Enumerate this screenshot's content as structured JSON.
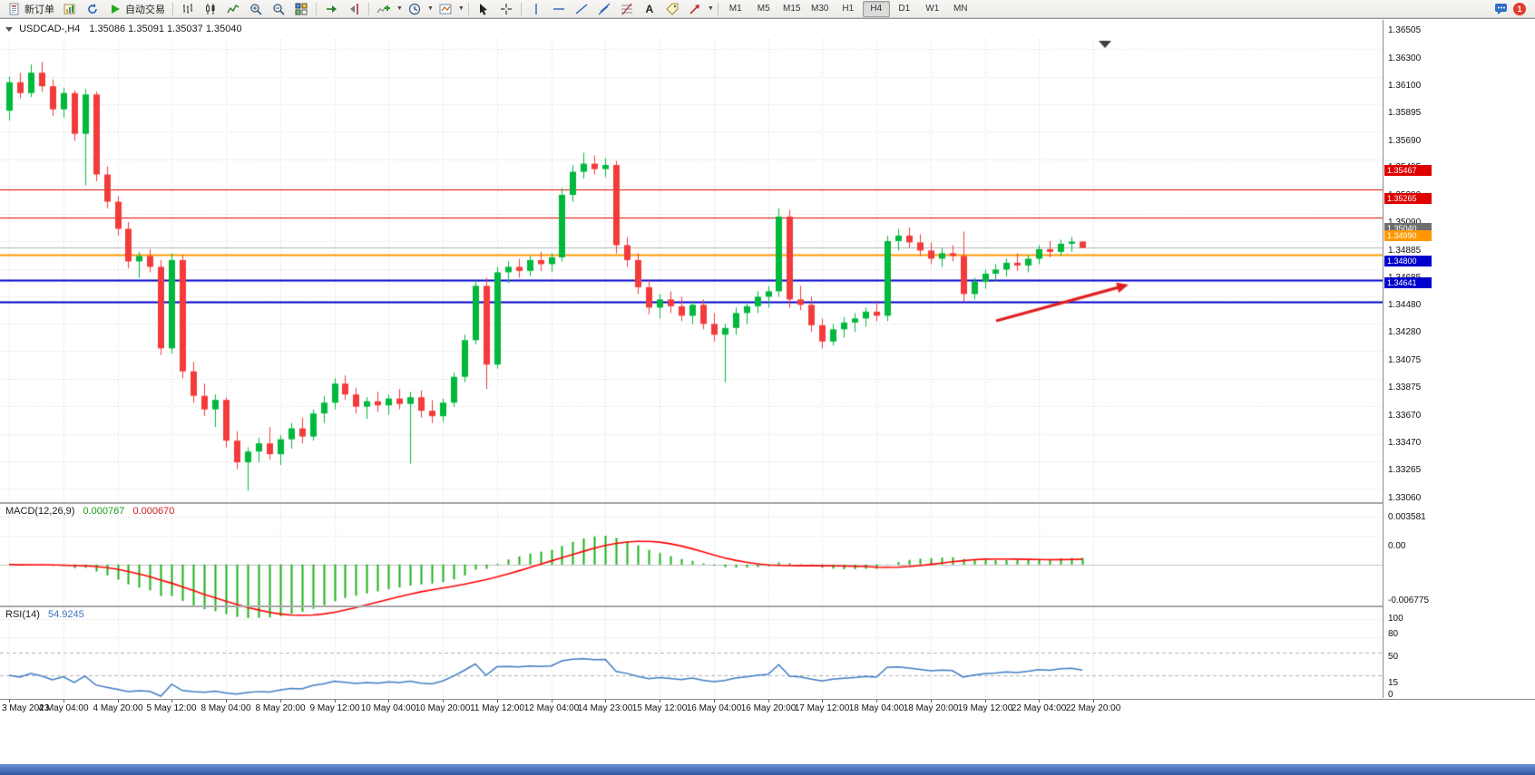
{
  "toolbar": {
    "new_order": "新订单",
    "auto_trading": "自动交易",
    "text_tool": "A",
    "timeframes": [
      "M1",
      "M5",
      "M15",
      "M30",
      "H1",
      "H4",
      "D1",
      "W1",
      "MN"
    ],
    "active_timeframe": "H4",
    "notification_count": "1"
  },
  "chart": {
    "symbol_period": "USDCAD-,H4",
    "ohlc": "1.35086 1.35091 1.35037 1.35040",
    "price_scale_labels": [
      "1.36505",
      "1.36300",
      "1.36100",
      "1.35895",
      "1.35690",
      "1.35495",
      "1.35290",
      "1.35090",
      "1.34885",
      "1.34685",
      "1.34480",
      "1.34280",
      "1.34075",
      "1.33875",
      "1.33670",
      "1.33470",
      "1.33265",
      "1.33060"
    ],
    "time_labels": [
      "3 May 2023",
      "4 May 04:00",
      "4 May 20:00",
      "5 May 12:00",
      "8 May 04:00",
      "8 May 20:00",
      "9 May 12:00",
      "10 May 04:00",
      "10 May 20:00",
      "11 May 12:00",
      "12 May 04:00",
      "14 May 23:00",
      "15 May 12:00",
      "16 May 04:00",
      "16 May 20:00",
      "17 May 12:00",
      "18 May 04:00",
      "18 May 20:00",
      "19 May 12:00",
      "22 May 04:00",
      "22 May 20:00"
    ],
    "levels": [
      {
        "label": "1.35467",
        "price": 1.35467,
        "color": "#df0000",
        "width": 1
      },
      {
        "label": "1.35265",
        "price": 1.35265,
        "color": "#df0000",
        "width": 1
      },
      {
        "label": "1.34990",
        "price": 1.3499,
        "color": "#ff9800",
        "width": 2
      },
      {
        "label": "1.34800",
        "price": 1.348,
        "color": "#0000cc",
        "width": 2
      },
      {
        "label": "1.34641",
        "price": 1.34641,
        "color": "#0000cc",
        "width": 2
      }
    ],
    "bid": {
      "label": "1.35040",
      "price": 1.3504,
      "color": "#6e6e6e"
    },
    "arrow_color": "#e02020"
  },
  "macd": {
    "title": "MACD(12,26,9)",
    "value_main": "0.000767",
    "value_signal": "0.000670",
    "scale_labels": [
      "0.003581",
      "0.00",
      "-0.006775"
    ],
    "scale_values": [
      0.003581,
      0,
      -0.006775
    ],
    "histogram_color": "#18b118",
    "signal_color": "#ff0000"
  },
  "rsi": {
    "title": "RSI(14)",
    "value": "54.9245",
    "scale_labels": [
      "100",
      "80",
      "50",
      "15",
      "0"
    ],
    "scale_values": [
      100,
      80,
      50,
      15,
      0
    ],
    "level_lines": [
      80,
      50,
      15
    ],
    "line_color": "#3f7cc4"
  },
  "chart_data": {
    "type": "candlestick",
    "symbol": "USDCAD-",
    "period": "H4",
    "ylim": [
      1.3306,
      1.36505
    ],
    "up_color": "#00b83c",
    "down_color": "#f23b3b",
    "indicators": [
      {
        "type": "macd",
        "params": [
          12,
          26,
          9
        ],
        "ylim": [
          -0.006775,
          0.003581
        ]
      },
      {
        "type": "rsi",
        "params": [
          14
        ],
        "ylim": [
          0,
          100
        ]
      }
    ],
    "candles": [
      [
        1.3605,
        1.363,
        1.3598,
        1.3626
      ],
      [
        1.3626,
        1.3633,
        1.3614,
        1.3618
      ],
      [
        1.3618,
        1.3639,
        1.3615,
        1.3633
      ],
      [
        1.3633,
        1.3641,
        1.3619,
        1.3623
      ],
      [
        1.3623,
        1.3628,
        1.3601,
        1.3606
      ],
      [
        1.3606,
        1.3622,
        1.36,
        1.3618
      ],
      [
        1.3618,
        1.362,
        1.3583,
        1.3588
      ],
      [
        1.3588,
        1.3621,
        1.355,
        1.3617
      ],
      [
        1.3617,
        1.3619,
        1.3553,
        1.3558
      ],
      [
        1.3558,
        1.3564,
        1.3533,
        1.3538
      ],
      [
        1.3538,
        1.3542,
        1.3513,
        1.3518
      ],
      [
        1.3518,
        1.3523,
        1.3489,
        1.3494
      ],
      [
        1.3494,
        1.3501,
        1.3482,
        1.3498
      ],
      [
        1.3498,
        1.3503,
        1.3486,
        1.349
      ],
      [
        1.349,
        1.3495,
        1.3425,
        1.343
      ],
      [
        1.343,
        1.35,
        1.3426,
        1.3495
      ],
      [
        1.3495,
        1.3499,
        1.3408,
        1.3413
      ],
      [
        1.3413,
        1.342,
        1.339,
        1.3395
      ],
      [
        1.3395,
        1.3404,
        1.338,
        1.3385
      ],
      [
        1.3385,
        1.3396,
        1.3372,
        1.3392
      ],
      [
        1.3392,
        1.3394,
        1.3357,
        1.3362
      ],
      [
        1.3362,
        1.3369,
        1.3341,
        1.3346
      ],
      [
        1.3346,
        1.3357,
        1.3325,
        1.3354
      ],
      [
        1.3354,
        1.3364,
        1.3346,
        1.336
      ],
      [
        1.336,
        1.3372,
        1.3348,
        1.3352
      ],
      [
        1.3352,
        1.3366,
        1.3344,
        1.3363
      ],
      [
        1.3363,
        1.3375,
        1.3356,
        1.3371
      ],
      [
        1.3371,
        1.3379,
        1.336,
        1.3365
      ],
      [
        1.3365,
        1.3385,
        1.3362,
        1.3382
      ],
      [
        1.3382,
        1.3395,
        1.3375,
        1.339
      ],
      [
        1.339,
        1.3408,
        1.3385,
        1.3404
      ],
      [
        1.3404,
        1.341,
        1.3392,
        1.3396
      ],
      [
        1.3396,
        1.3401,
        1.3382,
        1.3387
      ],
      [
        1.3387,
        1.3394,
        1.3378,
        1.3391
      ],
      [
        1.3391,
        1.3398,
        1.3383,
        1.3388
      ],
      [
        1.3388,
        1.3396,
        1.3381,
        1.3393
      ],
      [
        1.3393,
        1.34,
        1.3385,
        1.3389
      ],
      [
        1.3389,
        1.3398,
        1.3345,
        1.3394
      ],
      [
        1.3394,
        1.3399,
        1.3379,
        1.3384
      ],
      [
        1.3384,
        1.3392,
        1.3375,
        1.338
      ],
      [
        1.338,
        1.3393,
        1.3376,
        1.339
      ],
      [
        1.339,
        1.3412,
        1.3387,
        1.3409
      ],
      [
        1.3409,
        1.344,
        1.3405,
        1.3436
      ],
      [
        1.3436,
        1.348,
        1.3433,
        1.3476
      ],
      [
        1.3476,
        1.3482,
        1.34,
        1.3418
      ],
      [
        1.3418,
        1.349,
        1.3415,
        1.3486
      ],
      [
        1.3486,
        1.3494,
        1.3478,
        1.349
      ],
      [
        1.349,
        1.3496,
        1.3482,
        1.3487
      ],
      [
        1.3487,
        1.3498,
        1.3483,
        1.3495
      ],
      [
        1.3495,
        1.3501,
        1.3487,
        1.3492
      ],
      [
        1.3492,
        1.35,
        1.3486,
        1.3497
      ],
      [
        1.3497,
        1.3548,
        1.3494,
        1.3543
      ],
      [
        1.3543,
        1.3565,
        1.3538,
        1.356
      ],
      [
        1.356,
        1.3574,
        1.3555,
        1.3566
      ],
      [
        1.3566,
        1.3572,
        1.3558,
        1.3562
      ],
      [
        1.3562,
        1.357,
        1.3556,
        1.3565
      ],
      [
        1.3565,
        1.3568,
        1.35,
        1.3506
      ],
      [
        1.3506,
        1.3512,
        1.349,
        1.3495
      ],
      [
        1.3495,
        1.35,
        1.347,
        1.3475
      ],
      [
        1.3475,
        1.348,
        1.3455,
        1.346
      ],
      [
        1.346,
        1.347,
        1.3452,
        1.3466
      ],
      [
        1.3466,
        1.3472,
        1.3456,
        1.3461
      ],
      [
        1.3461,
        1.3468,
        1.345,
        1.3454
      ],
      [
        1.3454,
        1.3465,
        1.3448,
        1.3462
      ],
      [
        1.3462,
        1.3466,
        1.3444,
        1.3448
      ],
      [
        1.3448,
        1.3456,
        1.3435,
        1.344
      ],
      [
        1.344,
        1.3448,
        1.3405,
        1.3445
      ],
      [
        1.3445,
        1.346,
        1.344,
        1.3456
      ],
      [
        1.3456,
        1.3464,
        1.3448,
        1.3461
      ],
      [
        1.3461,
        1.3472,
        1.3456,
        1.3468
      ],
      [
        1.3468,
        1.3476,
        1.346,
        1.3472
      ],
      [
        1.3472,
        1.3533,
        1.3468,
        1.3527
      ],
      [
        1.3527,
        1.3532,
        1.346,
        1.3466
      ],
      [
        1.3466,
        1.3476,
        1.3458,
        1.3462
      ],
      [
        1.3462,
        1.3468,
        1.3442,
        1.3447
      ],
      [
        1.3447,
        1.3452,
        1.343,
        1.3435
      ],
      [
        1.3435,
        1.3448,
        1.3432,
        1.3444
      ],
      [
        1.3444,
        1.3453,
        1.3438,
        1.3449
      ],
      [
        1.3449,
        1.3456,
        1.3442,
        1.3452
      ],
      [
        1.3452,
        1.346,
        1.3446,
        1.3457
      ],
      [
        1.3457,
        1.3465,
        1.345,
        1.3454
      ],
      [
        1.3454,
        1.3513,
        1.345,
        1.3509
      ],
      [
        1.3509,
        1.3518,
        1.3502,
        1.3513
      ],
      [
        1.3513,
        1.3519,
        1.3504,
        1.3508
      ],
      [
        1.3508,
        1.3514,
        1.3498,
        1.3502
      ],
      [
        1.3502,
        1.3508,
        1.3492,
        1.3496
      ],
      [
        1.3496,
        1.3504,
        1.349,
        1.35
      ],
      [
        1.35,
        1.3506,
        1.3494,
        1.3498
      ],
      [
        1.3498,
        1.3516,
        1.3464,
        1.347
      ],
      [
        1.347,
        1.3482,
        1.3466,
        1.3479
      ],
      [
        1.3479,
        1.3488,
        1.3474,
        1.3485
      ],
      [
        1.3485,
        1.3492,
        1.3479,
        1.3488
      ],
      [
        1.3488,
        1.3496,
        1.3483,
        1.3493
      ],
      [
        1.3493,
        1.35,
        1.3487,
        1.3491
      ],
      [
        1.3491,
        1.3499,
        1.3486,
        1.3496
      ],
      [
        1.3496,
        1.3506,
        1.3492,
        1.3503
      ],
      [
        1.3503,
        1.3509,
        1.3497,
        1.3501
      ],
      [
        1.3501,
        1.351,
        1.3498,
        1.3507
      ],
      [
        1.3507,
        1.3512,
        1.3501,
        1.35086
      ],
      [
        1.35086,
        1.35091,
        1.35037,
        1.3504
      ]
    ]
  }
}
